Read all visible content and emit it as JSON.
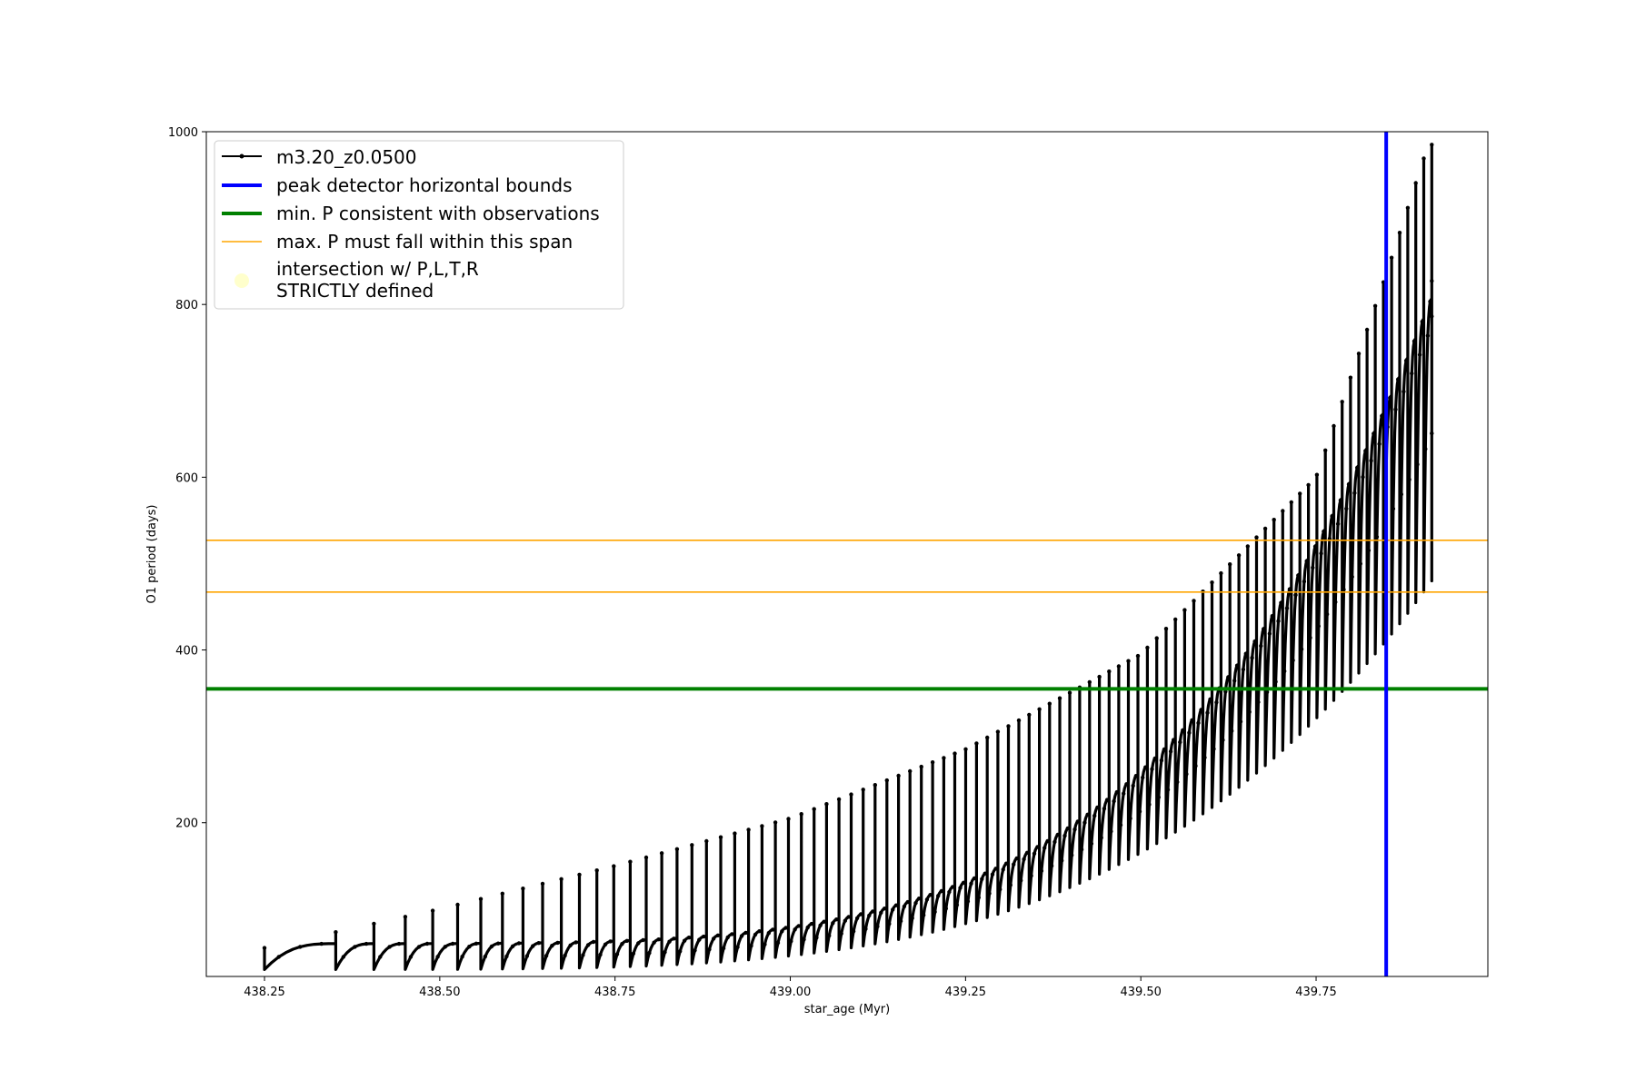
{
  "chart_data": {
    "type": "line",
    "xlabel": "star_age (Myr)",
    "ylabel": "O1 period (days)",
    "xlim": [
      438.167,
      439.995
    ],
    "ylim": [
      22,
      1000
    ],
    "xticks": [
      438.25,
      438.5,
      438.75,
      439.0,
      439.25,
      439.5,
      439.75
    ],
    "xtick_labels": [
      "438.25",
      "438.50",
      "438.75",
      "439.00",
      "439.25",
      "439.50",
      "439.75"
    ],
    "yticks": [
      200,
      400,
      600,
      800,
      1000
    ],
    "ytick_labels": [
      "200",
      "400",
      "600",
      "800",
      "1000"
    ],
    "grid": false,
    "legend_position": "top-left",
    "series": [
      {
        "name": "m3.20_z0.0500",
        "kind": "line-with-points",
        "color": "#000000",
        "description_points": {
          "start_age": 438.25,
          "end_age": 439.915,
          "pulse_count": 92,
          "envelope_low_start": 30,
          "envelope_low_end": 480,
          "envelope_peak_start": 55,
          "envelope_peak_end": 900,
          "spike_tops": [
            [
              438.25,
              55
            ],
            [
              438.5,
              100
            ],
            [
              438.75,
              150
            ],
            [
              439.0,
              205
            ],
            [
              439.25,
              285
            ],
            [
              439.5,
              395
            ],
            [
              439.75,
              600
            ],
            [
              439.85,
              835
            ],
            [
              439.91,
              985
            ]
          ]
        }
      },
      {
        "name": "peak detector horizontal bounds",
        "kind": "vline",
        "x": 439.85,
        "color": "#0000ff"
      },
      {
        "name": "min. P consistent with observations",
        "kind": "hline",
        "y": 355,
        "color": "#008000"
      },
      {
        "name": "max. P must fall within this span",
        "kind": "hline-pair",
        "y": [
          467,
          527
        ],
        "color": "#ffa500"
      },
      {
        "name": "intersection w/ P,L,T,R\nSTRICTLY defined",
        "kind": "marker",
        "color": "#ffffcc"
      }
    ],
    "legend": [
      {
        "label": "m3.20_z0.0500",
        "style": "line-point",
        "color": "#000000"
      },
      {
        "label": "peak detector horizontal bounds",
        "style": "line-thick",
        "color": "#0000ff"
      },
      {
        "label": "min. P consistent with observations",
        "style": "line-thick",
        "color": "#008000"
      },
      {
        "label": "max. P must fall within this span",
        "style": "line-thin",
        "color": "#ffa500"
      },
      {
        "label_line1": "intersection w/ P,L,T,R",
        "label_line2": "STRICTLY defined",
        "style": "circle",
        "color": "#ffffcc"
      }
    ]
  }
}
